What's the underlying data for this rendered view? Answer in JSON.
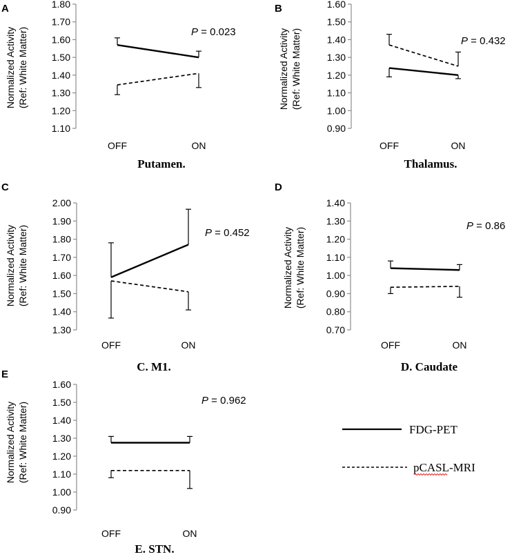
{
  "chart_data": [
    {
      "type": "line",
      "panel_letter": "A",
      "title": "Putamen.",
      "ylabel_line1": "Normalized Activity",
      "ylabel_line2": "(Ref: White Matter)",
      "categories": [
        "OFF",
        "ON"
      ],
      "ylim": [
        1.1,
        1.8
      ],
      "yticks": [
        "1.10",
        "1.20",
        "1.30",
        "1.40",
        "1.50",
        "1.60",
        "1.70",
        "1.80"
      ],
      "p_prefix": "P",
      "p_value": " = 0.023",
      "series": [
        {
          "name": "FDG-PET",
          "values": [
            1.57,
            1.5
          ],
          "err_hi": [
            1.61,
            1.535
          ],
          "err_lo": [
            null,
            null
          ]
        },
        {
          "name": "pCASL-MRI",
          "values": [
            1.345,
            1.41
          ],
          "err_hi": [
            null,
            null
          ],
          "err_lo": [
            1.29,
            1.33
          ]
        }
      ]
    },
    {
      "type": "line",
      "panel_letter": "B",
      "title": "Thalamus.",
      "ylabel_line1": "Normalized Activity",
      "ylabel_line2": "(Ref: White Matter)",
      "categories": [
        "OFF",
        "ON"
      ],
      "ylim": [
        0.9,
        1.6
      ],
      "yticks": [
        "0.90",
        "1.00",
        "1.10",
        "1.20",
        "1.30",
        "1.40",
        "1.50",
        "1.60"
      ],
      "p_prefix": "P",
      "p_value": " = 0.432",
      "series": [
        {
          "name": "FDG-PET",
          "values": [
            1.24,
            1.2
          ],
          "err_hi": [
            null,
            null
          ],
          "err_lo": [
            1.19,
            1.18
          ]
        },
        {
          "name": "pCASL-MRI",
          "values": [
            1.37,
            1.25
          ],
          "err_hi": [
            1.43,
            1.33
          ],
          "err_lo": [
            null,
            null
          ]
        }
      ]
    },
    {
      "type": "line",
      "panel_letter": "C",
      "title": "C. M1.",
      "ylabel_line1": "Normalized Activity",
      "ylabel_line2": "(Ref: White Matter)",
      "categories": [
        "OFF",
        "ON"
      ],
      "ylim": [
        1.3,
        2.0
      ],
      "yticks": [
        "1.30",
        "1.40",
        "1.50",
        "1.60",
        "1.70",
        "1.80",
        "1.90",
        "2.00"
      ],
      "p_prefix": "P",
      "p_value": " = 0.452",
      "series": [
        {
          "name": "FDG-PET",
          "values": [
            1.59,
            1.77
          ],
          "err_hi": [
            1.78,
            1.965
          ],
          "err_lo": [
            null,
            null
          ]
        },
        {
          "name": "pCASL-MRI",
          "values": [
            1.57,
            1.51
          ],
          "err_hi": [
            null,
            null
          ],
          "err_lo": [
            1.365,
            1.41
          ]
        }
      ]
    },
    {
      "type": "line",
      "panel_letter": "D",
      "title": "D. Caudate",
      "ylabel_line1": "Normalized Activity",
      "ylabel_line2": "(Ref: White Matter)",
      "categories": [
        "OFF",
        "ON"
      ],
      "ylim": [
        0.7,
        1.4
      ],
      "yticks": [
        "0.70",
        "0.80",
        "0.90",
        "1.00",
        "1.10",
        "1.20",
        "1.30",
        "1.40"
      ],
      "p_prefix": "P",
      "p_value": " = 0.86",
      "series": [
        {
          "name": "FDG-PET",
          "values": [
            1.04,
            1.03
          ],
          "err_hi": [
            1.08,
            1.06
          ],
          "err_lo": [
            null,
            null
          ]
        },
        {
          "name": "pCASL-MRI",
          "values": [
            0.935,
            0.94
          ],
          "err_hi": [
            null,
            null
          ],
          "err_lo": [
            0.9,
            0.88
          ]
        }
      ]
    },
    {
      "type": "line",
      "panel_letter": "E",
      "title": "E. STN.",
      "ylabel_line1": "Normalized Activity",
      "ylabel_line2": "(Ref: White Matter)",
      "categories": [
        "OFF",
        "ON"
      ],
      "ylim": [
        0.9,
        1.6
      ],
      "yticks": [
        "0.90",
        "1.00",
        "1.10",
        "1.20",
        "1.30",
        "1.40",
        "1.50",
        "1.60"
      ],
      "p_prefix": "P",
      "p_value": " = 0.962",
      "series": [
        {
          "name": "FDG-PET",
          "values": [
            1.275,
            1.275
          ],
          "err_hi": [
            1.31,
            1.31
          ],
          "err_lo": [
            null,
            null
          ]
        },
        {
          "name": "pCASL-MRI",
          "values": [
            1.12,
            1.12
          ],
          "err_hi": [
            null,
            null
          ],
          "err_lo": [
            1.08,
            1.02
          ]
        }
      ]
    }
  ],
  "legend": {
    "items": [
      {
        "label": "FDG-PET",
        "style": "solid"
      },
      {
        "label": "pCASL-MRI",
        "style": "dashed"
      }
    ]
  },
  "colors": {
    "line": "#000000",
    "axis": "#8c8c8c",
    "text": "#000000",
    "spell_underline": "#e0302a"
  }
}
